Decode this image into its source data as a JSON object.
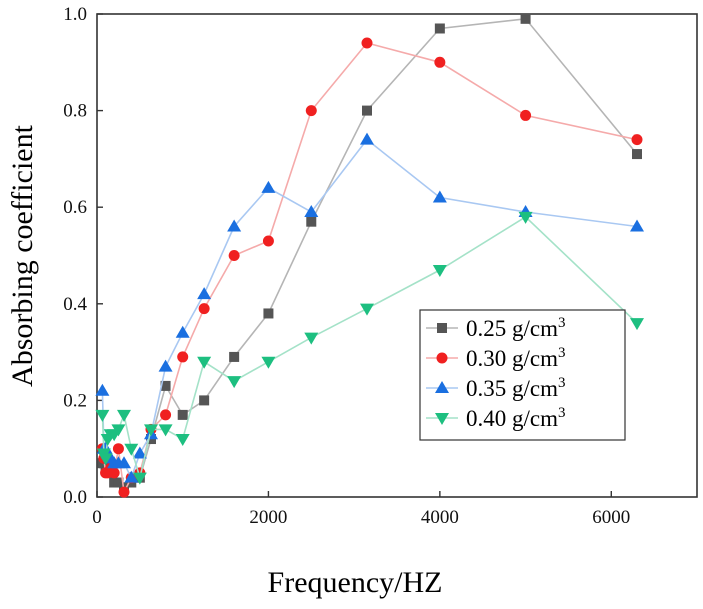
{
  "chart_data": {
    "type": "line",
    "title": "",
    "xlabel": "Frequency/HZ",
    "ylabel": "Absorbing coefficient",
    "xlim": [
      0,
      7000
    ],
    "ylim": [
      0,
      1.0
    ],
    "x_ticks": [
      0,
      2000,
      4000,
      6000
    ],
    "x_tick_labels": [
      "0",
      "2000",
      "4000",
      "6000"
    ],
    "y_ticks": [
      0,
      0.2,
      0.4,
      0.6,
      0.8,
      1.0
    ],
    "y_tick_labels": [
      "0.0",
      "0.2",
      "0.4",
      "0.6",
      "0.8",
      "1.0"
    ],
    "grid": false,
    "legend_position": "lower-right",
    "x": [
      63,
      80,
      100,
      125,
      160,
      200,
      250,
      315,
      400,
      500,
      630,
      800,
      1000,
      1250,
      1600,
      2000,
      2500,
      3150,
      4000,
      5000,
      6300
    ],
    "series": [
      {
        "name_prefix": "0.25 g/cm",
        "name_sup": "3",
        "marker": "square",
        "marker_color": "#555555",
        "line_color": "#b5b5b5",
        "values": [
          0.07,
          0.07,
          0.06,
          0.06,
          0.05,
          0.03,
          0.03,
          0.02,
          0.03,
          0.04,
          0.12,
          0.23,
          0.17,
          0.2,
          0.29,
          0.38,
          0.57,
          0.8,
          0.97,
          0.99,
          0.71
        ]
      },
      {
        "name_prefix": "0.30 g/cm",
        "name_sup": "3",
        "marker": "circle",
        "marker_color": "#f02020",
        "line_color": "#f5aaaa",
        "values": [
          0.1,
          0.08,
          0.05,
          0.05,
          0.06,
          0.05,
          0.1,
          0.01,
          0.04,
          0.05,
          0.14,
          0.17,
          0.29,
          0.39,
          0.5,
          0.53,
          0.8,
          0.94,
          0.9,
          0.79,
          0.74
        ]
      },
      {
        "name_prefix": "0.35 g/cm",
        "name_sup": "3",
        "marker": "triangle-up",
        "marker_color": "#1a6fe0",
        "line_color": "#a9c8f2",
        "values": [
          0.22,
          0.1,
          0.1,
          0.09,
          0.08,
          0.07,
          0.07,
          0.07,
          0.04,
          0.09,
          0.13,
          0.27,
          0.34,
          0.42,
          0.56,
          0.64,
          0.59,
          0.74,
          0.62,
          0.59,
          0.56
        ]
      },
      {
        "name_prefix": "0.40 g/cm",
        "name_sup": "3",
        "marker": "triangle-down",
        "marker_color": "#1dbf80",
        "line_color": "#a4e2c8",
        "values": [
          0.17,
          0.09,
          0.08,
          0.12,
          0.13,
          0.13,
          0.14,
          0.17,
          0.1,
          0.04,
          0.14,
          0.14,
          0.12,
          0.28,
          0.24,
          0.28,
          0.33,
          0.39,
          0.47,
          0.58,
          0.36
        ]
      }
    ]
  }
}
